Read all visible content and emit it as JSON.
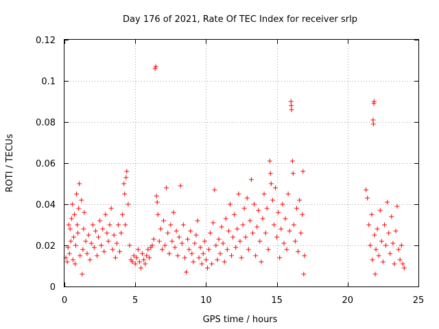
{
  "chart_data": {
    "type": "scatter",
    "title": "Day 176 of 2021, Rate Of TEC Index for receiver srlp",
    "xlabel": "GPS time / hours",
    "ylabel": "ROTI / TECUs",
    "xlim": [
      0,
      25
    ],
    "ylim": [
      0,
      0.12
    ],
    "xticks": [
      "0",
      "5",
      "10",
      "15",
      "20",
      "25"
    ],
    "yticks": [
      "0",
      "0.02",
      "0.04",
      "0.06",
      "0.08",
      "0.1",
      "0.12"
    ],
    "grid": true,
    "marker": "+",
    "series_color": "#ff0000",
    "series": [
      {
        "name": "ROTI",
        "points": [
          [
            0.1,
            0.014
          ],
          [
            0.2,
            0.012
          ],
          [
            0.25,
            0.019
          ],
          [
            0.3,
            0.03
          ],
          [
            0.35,
            0.016
          ],
          [
            0.4,
            0.028
          ],
          [
            0.45,
            0.022
          ],
          [
            0.5,
            0.033
          ],
          [
            0.55,
            0.04
          ],
          [
            0.6,
            0.013
          ],
          [
            0.65,
            0.024
          ],
          [
            0.7,
            0.035
          ],
          [
            0.75,
            0.011
          ],
          [
            0.8,
            0.02
          ],
          [
            0.85,
            0.045
          ],
          [
            0.9,
            0.03
          ],
          [
            0.95,
            0.026
          ],
          [
            1.0,
            0.038
          ],
          [
            1.05,
            0.05
          ],
          [
            1.1,
            0.015
          ],
          [
            1.2,
            0.042
          ],
          [
            1.25,
            0.006
          ],
          [
            1.3,
            0.018
          ],
          [
            1.35,
            0.028
          ],
          [
            1.4,
            0.036
          ],
          [
            1.5,
            0.022
          ],
          [
            1.6,
            0.016
          ],
          [
            1.7,
            0.025
          ],
          [
            1.8,
            0.013
          ],
          [
            1.9,
            0.021
          ],
          [
            2.0,
            0.03
          ],
          [
            2.1,
            0.019
          ],
          [
            2.2,
            0.027
          ],
          [
            2.3,
            0.015
          ],
          [
            2.4,
            0.024
          ],
          [
            2.5,
            0.032
          ],
          [
            2.6,
            0.02
          ],
          [
            2.7,
            0.028
          ],
          [
            2.8,
            0.017
          ],
          [
            2.9,
            0.035
          ],
          [
            3.0,
            0.026
          ],
          [
            3.1,
            0.022
          ],
          [
            3.2,
            0.03
          ],
          [
            3.3,
            0.038
          ],
          [
            3.4,
            0.018
          ],
          [
            3.5,
            0.025
          ],
          [
            3.6,
            0.014
          ],
          [
            3.7,
            0.021
          ],
          [
            3.8,
            0.03
          ],
          [
            3.9,
            0.017
          ],
          [
            4.0,
            0.026
          ],
          [
            4.1,
            0.035
          ],
          [
            4.2,
            0.05
          ],
          [
            4.25,
            0.045
          ],
          [
            4.3,
            0.03
          ],
          [
            4.35,
            0.053
          ],
          [
            4.4,
            0.056
          ],
          [
            4.5,
            0.04
          ],
          [
            4.6,
            0.02
          ],
          [
            4.7,
            0.013
          ],
          [
            4.8,
            0.012
          ],
          [
            4.9,
            0.015
          ],
          [
            5.0,
            0.011
          ],
          [
            5.1,
            0.014
          ],
          [
            5.2,
            0.018
          ],
          [
            5.3,
            0.012
          ],
          [
            5.4,
            0.009
          ],
          [
            5.5,
            0.016
          ],
          [
            5.6,
            0.013
          ],
          [
            5.7,
            0.011
          ],
          [
            5.8,
            0.015
          ],
          [
            5.9,
            0.018
          ],
          [
            6.0,
            0.014
          ],
          [
            6.1,
            0.019
          ],
          [
            6.2,
            0.02
          ],
          [
            6.3,
            0.023
          ],
          [
            6.4,
            0.106
          ],
          [
            6.45,
            0.107
          ],
          [
            6.5,
            0.044
          ],
          [
            6.55,
            0.041
          ],
          [
            6.6,
            0.035
          ],
          [
            6.7,
            0.022
          ],
          [
            6.8,
            0.028
          ],
          [
            6.9,
            0.018
          ],
          [
            7.0,
            0.032
          ],
          [
            7.1,
            0.02
          ],
          [
            7.2,
            0.048
          ],
          [
            7.3,
            0.026
          ],
          [
            7.4,
            0.016
          ],
          [
            7.5,
            0.03
          ],
          [
            7.6,
            0.022
          ],
          [
            7.7,
            0.036
          ],
          [
            7.8,
            0.019
          ],
          [
            7.9,
            0.027
          ],
          [
            8.0,
            0.015
          ],
          [
            8.1,
            0.024
          ],
          [
            8.2,
            0.049
          ],
          [
            8.3,
            0.021
          ],
          [
            8.4,
            0.03
          ],
          [
            8.5,
            0.014
          ],
          [
            8.6,
            0.007
          ],
          [
            8.7,
            0.023
          ],
          [
            8.8,
            0.018
          ],
          [
            8.9,
            0.027
          ],
          [
            9.0,
            0.016
          ],
          [
            9.1,
            0.012
          ],
          [
            9.2,
            0.021
          ],
          [
            9.3,
            0.025
          ],
          [
            9.4,
            0.032
          ],
          [
            9.5,
            0.014
          ],
          [
            9.6,
            0.019
          ],
          [
            9.7,
            0.011
          ],
          [
            9.8,
            0.016
          ],
          [
            9.9,
            0.022
          ],
          [
            10.0,
            0.013
          ],
          [
            10.1,
            0.009
          ],
          [
            10.2,
            0.018
          ],
          [
            10.3,
            0.026
          ],
          [
            10.4,
            0.011
          ],
          [
            10.5,
            0.031
          ],
          [
            10.6,
            0.047
          ],
          [
            10.7,
            0.02
          ],
          [
            10.8,
            0.013
          ],
          [
            10.9,
            0.023
          ],
          [
            11.0,
            0.016
          ],
          [
            11.1,
            0.029
          ],
          [
            11.2,
            0.021
          ],
          [
            11.3,
            0.012
          ],
          [
            11.4,
            0.033
          ],
          [
            11.5,
            0.018
          ],
          [
            11.6,
            0.027
          ],
          [
            11.7,
            0.04
          ],
          [
            11.8,
            0.015
          ],
          [
            11.9,
            0.024
          ],
          [
            12.0,
            0.035
          ],
          [
            12.1,
            0.019
          ],
          [
            12.2,
            0.028
          ],
          [
            12.3,
            0.045
          ],
          [
            12.4,
            0.022
          ],
          [
            12.5,
            0.014
          ],
          [
            12.6,
            0.03
          ],
          [
            12.7,
            0.038
          ],
          [
            12.8,
            0.024
          ],
          [
            12.9,
            0.043
          ],
          [
            13.0,
            0.018
          ],
          [
            13.1,
            0.032
          ],
          [
            13.2,
            0.052
          ],
          [
            13.3,
            0.026
          ],
          [
            13.4,
            0.04
          ],
          [
            13.5,
            0.015
          ],
          [
            13.6,
            0.029
          ],
          [
            13.7,
            0.037
          ],
          [
            13.8,
            0.022
          ],
          [
            13.9,
            0.012
          ],
          [
            14.0,
            0.033
          ],
          [
            14.1,
            0.045
          ],
          [
            14.2,
            0.026
          ],
          [
            14.3,
            0.038
          ],
          [
            14.4,
            0.018
          ],
          [
            14.5,
            0.061
          ],
          [
            14.55,
            0.055
          ],
          [
            14.6,
            0.05
          ],
          [
            14.7,
            0.042
          ],
          [
            14.8,
            0.03
          ],
          [
            14.9,
            0.048
          ],
          [
            15.0,
            0.024
          ],
          [
            15.1,
            0.036
          ],
          [
            15.2,
            0.014
          ],
          [
            15.3,
            0.028
          ],
          [
            15.4,
            0.04
          ],
          [
            15.5,
            0.021
          ],
          [
            15.6,
            0.033
          ],
          [
            15.7,
            0.018
          ],
          [
            15.8,
            0.045
          ],
          [
            15.9,
            0.027
          ],
          [
            16.0,
            0.09
          ],
          [
            16.02,
            0.088
          ],
          [
            16.04,
            0.086
          ],
          [
            16.1,
            0.061
          ],
          [
            16.15,
            0.055
          ],
          [
            16.2,
            0.03
          ],
          [
            16.3,
            0.022
          ],
          [
            16.4,
            0.038
          ],
          [
            16.5,
            0.017
          ],
          [
            16.6,
            0.042
          ],
          [
            16.7,
            0.026
          ],
          [
            16.8,
            0.035
          ],
          [
            16.85,
            0.056
          ],
          [
            16.9,
            0.006
          ],
          [
            16.95,
            0.015
          ],
          [
            21.3,
            0.047
          ],
          [
            21.4,
            0.043
          ],
          [
            21.5,
            0.03
          ],
          [
            21.6,
            0.02
          ],
          [
            21.7,
            0.035
          ],
          [
            21.75,
            0.013
          ],
          [
            21.8,
            0.081
          ],
          [
            21.82,
            0.079
          ],
          [
            21.85,
            0.089
          ],
          [
            21.87,
            0.09
          ],
          [
            21.9,
            0.025
          ],
          [
            21.95,
            0.006
          ],
          [
            22.0,
            0.018
          ],
          [
            22.1,
            0.028
          ],
          [
            22.2,
            0.015
          ],
          [
            22.3,
            0.037
          ],
          [
            22.4,
            0.022
          ],
          [
            22.5,
            0.012
          ],
          [
            22.6,
            0.03
          ],
          [
            22.7,
            0.02
          ],
          [
            22.8,
            0.041
          ],
          [
            22.9,
            0.026
          ],
          [
            23.0,
            0.016
          ],
          [
            23.1,
            0.034
          ],
          [
            23.2,
            0.021
          ],
          [
            23.3,
            0.011
          ],
          [
            23.4,
            0.027
          ],
          [
            23.5,
            0.039
          ],
          [
            23.6,
            0.018
          ],
          [
            23.7,
            0.013
          ],
          [
            23.8,
            0.02
          ],
          [
            23.9,
            0.011
          ],
          [
            24.0,
            0.009
          ]
        ]
      }
    ]
  }
}
